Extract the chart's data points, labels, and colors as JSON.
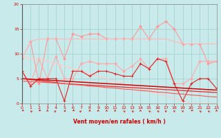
{
  "background_color": "#c8eaea",
  "grid_color": "#a0cccc",
  "xlabel": "Vent moyen/en rafales ( km/h )",
  "xlim": [
    0,
    23
  ],
  "ylim": [
    0,
    20
  ],
  "yticks": [
    0,
    5,
    10,
    15,
    20
  ],
  "xticks": [
    0,
    1,
    2,
    3,
    4,
    5,
    6,
    7,
    8,
    9,
    10,
    11,
    12,
    13,
    14,
    15,
    16,
    17,
    18,
    19,
    20,
    21,
    22,
    23
  ],
  "series": [
    {
      "name": "rafales_upper_dots",
      "color": "#ff9999",
      "linewidth": 0.8,
      "marker": "D",
      "markersize": 1.8,
      "y": [
        9.0,
        12.5,
        4.0,
        13.0,
        13.0,
        9.0,
        14.0,
        13.5,
        14.0,
        14.0,
        13.0,
        13.0,
        13.0,
        13.0,
        15.5,
        13.0,
        15.5,
        16.5,
        15.0,
        12.0,
        12.0,
        12.0,
        8.0,
        8.5
      ]
    },
    {
      "name": "rafales_smooth_line",
      "color": "#ffbbbb",
      "linewidth": 0.9,
      "marker": null,
      "y": [
        9.0,
        12.5,
        13.0,
        13.0,
        13.0,
        13.0,
        13.0,
        13.0,
        13.0,
        13.0,
        13.0,
        13.0,
        13.0,
        13.0,
        13.0,
        13.0,
        13.0,
        13.0,
        12.5,
        12.0,
        12.0,
        12.0,
        12.0,
        12.0
      ]
    },
    {
      "name": "vent_moyen_jagged",
      "color": "#ffaaaa",
      "linewidth": 0.8,
      "marker": "D",
      "markersize": 1.8,
      "y": [
        6.5,
        4.0,
        9.0,
        5.0,
        9.5,
        5.0,
        5.0,
        8.0,
        8.5,
        8.0,
        8.0,
        8.0,
        6.5,
        7.5,
        9.0,
        7.0,
        9.0,
        9.0,
        4.0,
        4.0,
        5.0,
        8.5,
        8.5,
        8.5
      ]
    },
    {
      "name": "vent_moyen_smooth_diag",
      "color": "#ffcccc",
      "linewidth": 0.9,
      "marker": null,
      "y": [
        9.5,
        9.0,
        9.0,
        8.5,
        8.0,
        7.5,
        7.0,
        6.5,
        6.0,
        5.5,
        5.0,
        4.5,
        4.0,
        3.5,
        3.0,
        2.5,
        2.0,
        1.5,
        1.0,
        0.5,
        0.0,
        0.0,
        0.0,
        0.0
      ]
    },
    {
      "name": "vent_markers_red",
      "color": "#dd2222",
      "linewidth": 0.8,
      "marker": "+",
      "markersize": 3.5,
      "y": [
        6.5,
        3.5,
        5.0,
        5.0,
        5.0,
        0.5,
        6.5,
        6.5,
        5.5,
        6.5,
        6.5,
        6.0,
        5.5,
        5.5,
        8.0,
        7.0,
        9.0,
        8.5,
        4.0,
        0.5,
        4.0,
        5.0,
        5.0,
        3.0
      ]
    },
    {
      "name": "trend_linear_dark",
      "color": "#cc0000",
      "linewidth": 1.1,
      "marker": null,
      "y": [
        5.0,
        4.9,
        4.8,
        4.7,
        4.6,
        4.5,
        4.4,
        4.3,
        4.2,
        4.1,
        4.0,
        3.9,
        3.8,
        3.7,
        3.6,
        3.5,
        3.4,
        3.3,
        3.2,
        3.1,
        3.0,
        2.9,
        2.8,
        2.7
      ]
    },
    {
      "name": "trend_linear_medium",
      "color": "#ee2222",
      "linewidth": 0.9,
      "marker": null,
      "y": [
        5.0,
        4.8,
        4.6,
        4.4,
        4.2,
        4.0,
        3.9,
        3.8,
        3.7,
        3.6,
        3.5,
        3.4,
        3.3,
        3.2,
        3.1,
        3.0,
        2.9,
        2.8,
        2.7,
        2.6,
        2.5,
        2.4,
        2.3,
        2.2
      ]
    },
    {
      "name": "trend_linear_light",
      "color": "#ff5555",
      "linewidth": 0.8,
      "marker": null,
      "y": [
        4.5,
        4.4,
        4.3,
        4.2,
        4.1,
        4.0,
        3.8,
        3.7,
        3.5,
        3.4,
        3.2,
        3.1,
        2.9,
        2.8,
        2.6,
        2.5,
        2.3,
        2.2,
        2.0,
        1.9,
        1.7,
        1.6,
        1.4,
        1.3
      ]
    }
  ],
  "wind_angles": [
    225,
    315,
    225,
    0,
    45,
    270,
    225,
    45,
    0,
    0,
    0,
    0,
    315,
    315,
    0,
    315,
    315,
    180,
    180,
    180,
    225,
    315,
    315,
    0
  ]
}
